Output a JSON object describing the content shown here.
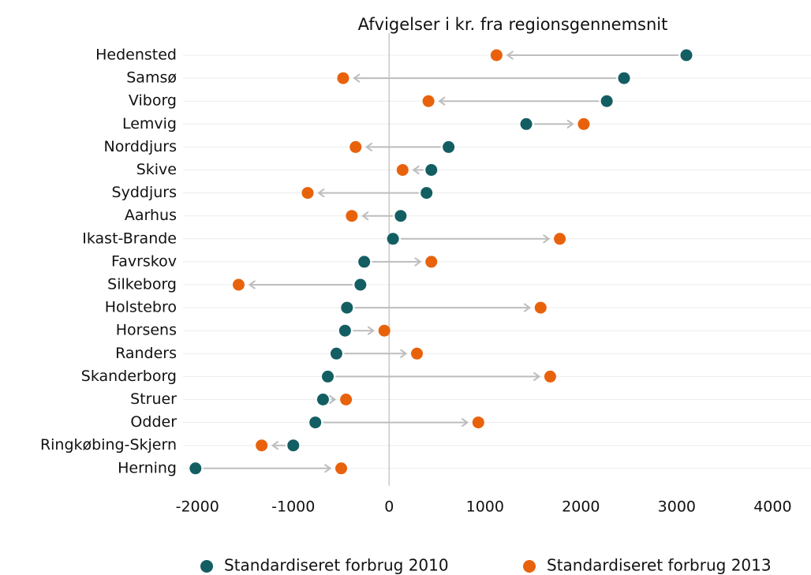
{
  "chart_data": {
    "type": "dumbbell",
    "title": "Afvigelser i kr. fra regionsgennemsnit",
    "categories": [
      "Hedensted",
      "Samsø",
      "Viborg",
      "Lemvig",
      "Norddjurs",
      "Skive",
      "Syddjurs",
      "Aarhus",
      "Ikast-Brande",
      "Favrskov",
      "Silkeborg",
      "Holstebro",
      "Horsens",
      "Randers",
      "Skanderborg",
      "Struer",
      "Odder",
      "Ringkøbing-Skjern",
      "Herning"
    ],
    "series": [
      {
        "name": "Standardiseret forbrug 2010",
        "color": "#135e63",
        "values": [
          3100,
          2450,
          2270,
          1430,
          620,
          440,
          390,
          120,
          40,
          -260,
          -300,
          -440,
          -460,
          -550,
          -640,
          -690,
          -770,
          -1000,
          -2020
        ]
      },
      {
        "name": "Standardiseret forbrug 2013",
        "color": "#e8620c",
        "values": [
          1120,
          -480,
          410,
          2030,
          -350,
          140,
          -850,
          -390,
          1780,
          440,
          -1570,
          1580,
          -50,
          290,
          1680,
          -450,
          930,
          -1330,
          -500
        ]
      }
    ],
    "xlim": [
      -2150,
      4400
    ],
    "xticks": [
      -2000,
      -1000,
      0,
      1000,
      2000,
      3000,
      4000
    ],
    "grid": true,
    "arrow_color": "#bdbdbd"
  }
}
